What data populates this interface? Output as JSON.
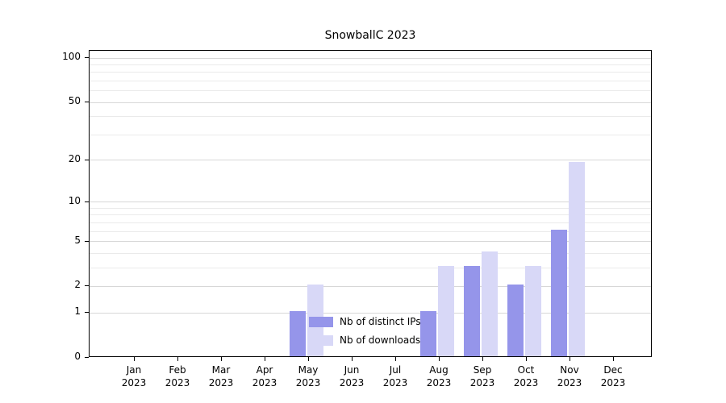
{
  "title": "SnowballC 2023",
  "chart_data": {
    "type": "bar",
    "title": "SnowballC 2023",
    "xlabel": "",
    "ylabel": "",
    "scale": "log1p",
    "ylim": [
      0,
      112
    ],
    "grid": true,
    "yticks": [
      0,
      1,
      2,
      5,
      10,
      20,
      50,
      100
    ],
    "minor_yticks": [
      3,
      4,
      6,
      7,
      8,
      9,
      30,
      40,
      60,
      70,
      80,
      90
    ],
    "categories": [
      "Jan 2023",
      "Feb 2023",
      "Mar 2023",
      "Apr 2023",
      "May 2023",
      "Jun 2023",
      "Jul 2023",
      "Aug 2023",
      "Sep 2023",
      "Oct 2023",
      "Nov 2023",
      "Dec 2023"
    ],
    "series": [
      {
        "name": "Nb of distinct IPs",
        "color": "#9595ea",
        "values": [
          0,
          0,
          0,
          0,
          1,
          0,
          0,
          1,
          3,
          2,
          6,
          0
        ]
      },
      {
        "name": "Nb of downloads",
        "color": "#d8d8f7",
        "values": [
          0,
          0,
          0,
          0,
          2,
          0,
          0,
          3,
          4,
          3,
          19,
          0
        ]
      }
    ],
    "legend": {
      "position": "inside-bottom-center",
      "frame": false
    }
  }
}
